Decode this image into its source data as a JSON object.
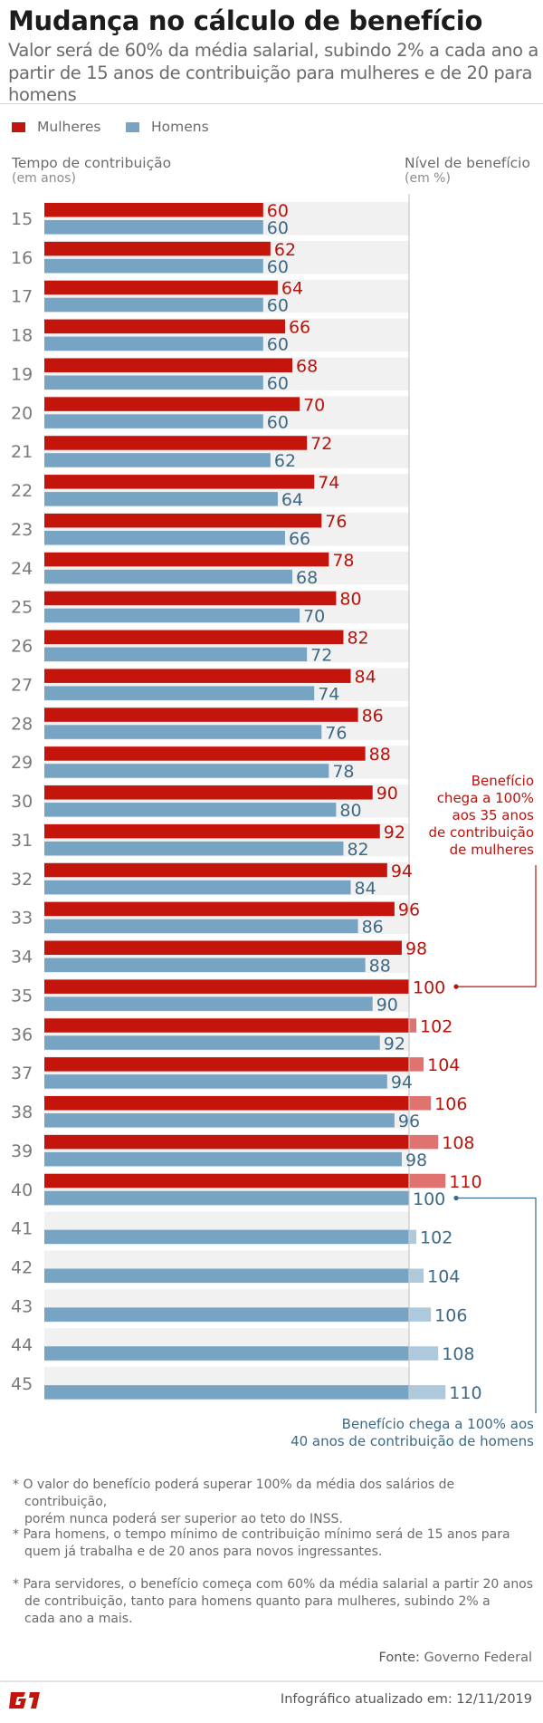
{
  "header": {
    "title": "Mudança no cálculo de benefício",
    "subtitle": "Valor será de 60% da média salarial, subindo 2% a cada ano a partir de 15 anos de contribuição para mulheres e de 20 para homens"
  },
  "legend": [
    {
      "label": "Mulheres",
      "color": "#c4150c"
    },
    {
      "label": "Homens",
      "color": "#78a4c4"
    }
  ],
  "axes": {
    "left_title": "Tempo de contribuição",
    "left_sub": "(em anos)",
    "right_title": "Nível de benefício",
    "right_sub": "(em %)"
  },
  "colors": {
    "women": "#c4150c",
    "women_over": "#e07370",
    "women_text": "#b8140e",
    "men": "#78a4c4",
    "men_over": "#aec8dc",
    "men_text": "#3d6a86",
    "band": "#f1f1f1",
    "reference_line": "#c8c8c8"
  },
  "chart_data": {
    "type": "bar",
    "orientation": "horizontal",
    "title": "Mudança no cálculo de benefício",
    "xlabel": "Nível de benefício (em %)",
    "ylabel": "Tempo de contribuição (em anos)",
    "categories": [
      "15",
      "16",
      "17",
      "18",
      "19",
      "20",
      "21",
      "22",
      "23",
      "24",
      "25",
      "26",
      "27",
      "28",
      "29",
      "30",
      "31",
      "32",
      "33",
      "34",
      "35",
      "36",
      "37",
      "38",
      "39",
      "40",
      "41",
      "42",
      "43",
      "44",
      "45"
    ],
    "series": [
      {
        "name": "Mulheres",
        "values": [
          60,
          62,
          64,
          66,
          68,
          70,
          72,
          74,
          76,
          78,
          80,
          82,
          84,
          86,
          88,
          90,
          92,
          94,
          96,
          98,
          100,
          102,
          104,
          106,
          108,
          110,
          null,
          null,
          null,
          null,
          null
        ]
      },
      {
        "name": "Homens",
        "values": [
          60,
          60,
          60,
          60,
          60,
          60,
          62,
          64,
          66,
          68,
          70,
          72,
          74,
          76,
          78,
          80,
          82,
          84,
          86,
          88,
          90,
          92,
          94,
          96,
          98,
          100,
          102,
          104,
          106,
          108,
          110
        ]
      }
    ],
    "reference_line": 100,
    "xlim": [
      0,
      110
    ],
    "grid": false,
    "legend_position": "top-left",
    "annotations": [
      {
        "series": "Mulheres",
        "category": "35",
        "text": "Benefício chega a 100% aos 35 anos de contribuição de mulheres"
      },
      {
        "series": "Homens",
        "category": "40",
        "text": "Benefício chega a 100% aos 40 anos de contribuição de homens"
      }
    ]
  },
  "callouts": {
    "women_lines": [
      "Benefício",
      "chega a 100%",
      "aos 35 anos",
      "de contribuição",
      "de mulheres"
    ],
    "men_lines": [
      "Benefício chega a 100% aos",
      "40 anos de contribuição de homens"
    ]
  },
  "notes": [
    {
      "lines": [
        "* O valor do benefício poderá superar 100% da média dos salários de contribuição,",
        "porém nunca poderá ser superior ao teto do INSS."
      ]
    },
    {
      "lines": [
        "* Para homens, o tempo mínimo de contribuição mínimo será de 15 anos para",
        "quem já trabalha e de 20 anos para novos ingressantes."
      ]
    },
    {
      "lines": [
        "* Para servidores, o benefício começa com 60% da média salarial a partir 20 anos",
        "de contribuição, tanto para homens quanto para mulheres, subindo 2% a",
        "cada ano a mais."
      ]
    }
  ],
  "footer": {
    "source_label": "Fonte:",
    "source_value": "Governo Federal",
    "updated": "Infográfico atualizado em: 12/11/2019",
    "logo": "G1"
  }
}
